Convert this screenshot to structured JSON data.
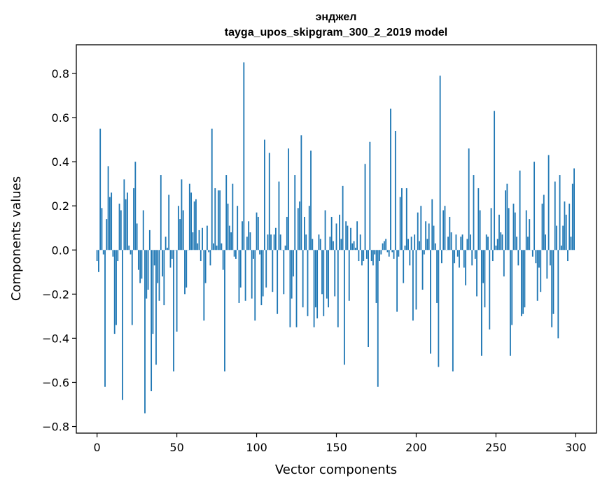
{
  "chart_data": {
    "type": "bar",
    "title_line1": "энджел",
    "title_line2": "tayga_upos_skipgram_300_2_2019 model",
    "xlabel": "Vector components",
    "ylabel": "Components values",
    "xlim": [
      -13,
      313
    ],
    "ylim": [
      -0.83,
      0.93
    ],
    "xticks": [
      0,
      50,
      100,
      150,
      200,
      250,
      300
    ],
    "xtick_labels": [
      "0",
      "50",
      "100",
      "150",
      "200",
      "250",
      "300"
    ],
    "yticks": [
      -0.8,
      -0.6,
      -0.4,
      -0.2,
      0.0,
      0.2,
      0.4,
      0.6,
      0.8
    ],
    "ytick_labels": [
      "−0.8",
      "−0.6",
      "−0.4",
      "−0.2",
      "0.0",
      "0.2",
      "0.4",
      "0.6",
      "0.8"
    ],
    "bar_color": "#1f77b4",
    "values": [
      -0.05,
      -0.1,
      0.55,
      0.19,
      -0.02,
      -0.62,
      0.14,
      0.38,
      0.24,
      0.26,
      -0.03,
      -0.38,
      -0.34,
      -0.05,
      0.21,
      0.18,
      -0.68,
      0.32,
      0.23,
      0.26,
      0.02,
      -0.02,
      -0.34,
      0.28,
      0.4,
      0.12,
      -0.09,
      -0.15,
      -0.13,
      0.18,
      -0.74,
      -0.22,
      -0.18,
      0.09,
      -0.64,
      -0.38,
      -0.07,
      -0.52,
      -0.15,
      -0.23,
      0.34,
      -0.12,
      -0.25,
      0.06,
      0.01,
      0.25,
      -0.08,
      -0.04,
      -0.55,
      0.0,
      -0.37,
      0.2,
      0.14,
      0.32,
      0.18,
      -0.2,
      -0.17,
      0.0,
      0.3,
      0.26,
      0.08,
      0.22,
      0.23,
      0.03,
      0.09,
      -0.05,
      0.1,
      -0.32,
      -0.15,
      0.11,
      -0.01,
      -0.07,
      0.55,
      0.03,
      0.28,
      0.02,
      0.27,
      0.27,
      0.03,
      -0.09,
      -0.55,
      0.34,
      0.21,
      0.11,
      0.08,
      0.3,
      -0.03,
      -0.04,
      0.2,
      -0.24,
      -0.17,
      0.13,
      0.85,
      -0.23,
      0.06,
      0.13,
      0.08,
      -0.22,
      -0.04,
      -0.32,
      0.17,
      0.15,
      -0.02,
      -0.25,
      -0.21,
      0.5,
      -0.17,
      0.07,
      0.44,
      0.07,
      -0.19,
      0.07,
      0.1,
      -0.29,
      0.31,
      0.07,
      0.0,
      -0.2,
      0.02,
      0.15,
      0.46,
      -0.35,
      -0.22,
      -0.12,
      0.34,
      -0.35,
      0.19,
      0.22,
      0.52,
      -0.26,
      0.15,
      0.07,
      -0.3,
      0.2,
      0.45,
      0.05,
      -0.35,
      -0.26,
      -0.31,
      0.07,
      0.05,
      -0.2,
      -0.3,
      0.18,
      -0.22,
      -0.26,
      0.06,
      0.15,
      0.04,
      -0.21,
      0.12,
      -0.35,
      0.16,
      0.05,
      0.29,
      -0.52,
      0.13,
      0.11,
      -0.23,
      0.1,
      0.03,
      0.04,
      0.01,
      0.13,
      -0.05,
      0.07,
      -0.07,
      -0.05,
      0.39,
      -0.04,
      -0.44,
      0.49,
      -0.05,
      -0.07,
      -0.02,
      -0.24,
      -0.62,
      -0.05,
      -0.02,
      0.03,
      0.04,
      0.05,
      -0.01,
      -0.03,
      0.64,
      -0.01,
      -0.04,
      0.54,
      -0.28,
      -0.03,
      0.24,
      0.28,
      -0.15,
      0.02,
      0.28,
      0.05,
      -0.07,
      0.06,
      -0.32,
      0.07,
      -0.27,
      0.17,
      0.04,
      0.2,
      -0.18,
      -0.02,
      0.13,
      0.05,
      0.12,
      -0.47,
      0.23,
      0.11,
      0.03,
      -0.24,
      -0.53,
      0.79,
      -0.06,
      0.18,
      0.2,
      0.0,
      0.06,
      0.15,
      0.08,
      -0.55,
      -0.06,
      0.07,
      -0.03,
      -0.08,
      0.06,
      0.07,
      -0.08,
      -0.16,
      0.05,
      0.46,
      0.07,
      -0.07,
      0.34,
      -0.04,
      -0.21,
      0.28,
      0.18,
      -0.48,
      -0.15,
      -0.26,
      0.07,
      0.06,
      -0.36,
      0.19,
      -0.05,
      0.63,
      0.02,
      0.05,
      0.16,
      0.08,
      0.07,
      -0.12,
      0.27,
      0.3,
      0.19,
      -0.48,
      -0.34,
      0.21,
      0.17,
      0.06,
      -0.07,
      0.36,
      -0.3,
      -0.29,
      -0.26,
      0.18,
      0.06,
      0.14,
      0.0,
      -0.03,
      0.4,
      -0.06,
      -0.23,
      -0.08,
      -0.19,
      0.21,
      0.25,
      0.07,
      -0.13,
      0.43,
      -0.07,
      -0.35,
      -0.29,
      0.31,
      0.11,
      -0.4,
      0.34,
      0.02,
      0.11,
      0.22,
      0.16,
      -0.05,
      0.21,
      0.06,
      0.3,
      0.37
    ]
  }
}
